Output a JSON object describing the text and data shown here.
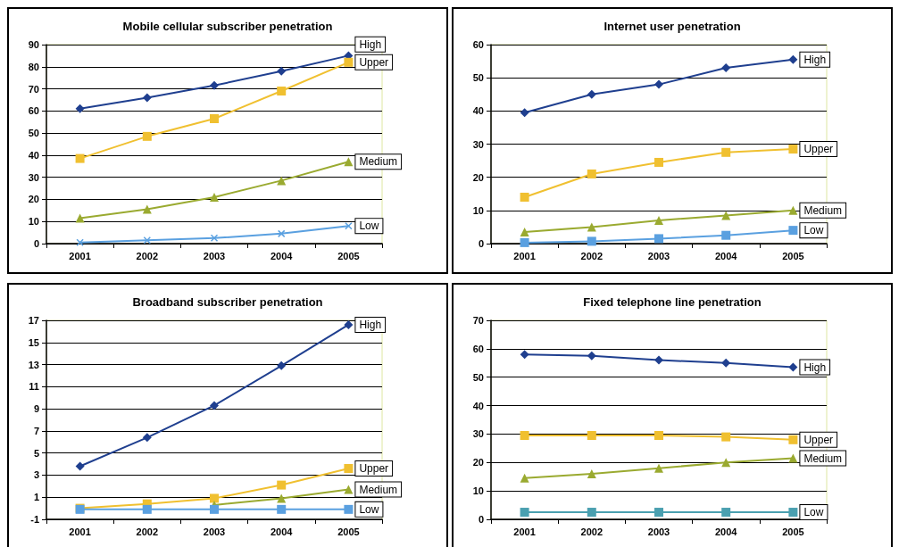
{
  "chart_data": [
    {
      "type": "line",
      "title": "Mobile cellular subscriber penetration",
      "categories": [
        "2001",
        "2002",
        "2003",
        "2004",
        "2005"
      ],
      "ylim": [
        0,
        90
      ],
      "yticks": [
        0,
        10,
        20,
        30,
        40,
        50,
        60,
        70,
        80,
        90
      ],
      "grid": "y",
      "legend": false,
      "series": [
        {
          "name": "High",
          "color": "#1f3f8f",
          "marker": "diamond",
          "values": [
            61,
            66,
            71.5,
            78,
            85
          ]
        },
        {
          "name": "Upper",
          "color": "#f0c030",
          "marker": "square",
          "values": [
            38.5,
            48.5,
            56.5,
            69,
            82
          ]
        },
        {
          "name": "Medium",
          "color": "#9aaa30",
          "marker": "triangle",
          "values": [
            11.5,
            15.5,
            21,
            28.5,
            37
          ]
        },
        {
          "name": "Low",
          "color": "#5aa0e0",
          "marker": "cross",
          "values": [
            0.5,
            1.5,
            2.5,
            4.5,
            8
          ]
        }
      ]
    },
    {
      "type": "line",
      "title": "Internet user penetration",
      "categories": [
        "2001",
        "2002",
        "2003",
        "2004",
        "2005"
      ],
      "ylim": [
        0,
        60
      ],
      "yticks": [
        0,
        10,
        20,
        30,
        40,
        50,
        60
      ],
      "grid": "y",
      "legend": false,
      "series": [
        {
          "name": "High",
          "color": "#1f3f8f",
          "marker": "diamond",
          "values": [
            39.5,
            45,
            48,
            53,
            55.5
          ]
        },
        {
          "name": "Upper",
          "color": "#f0c030",
          "marker": "square",
          "values": [
            14,
            21,
            24.5,
            27.5,
            28.5
          ]
        },
        {
          "name": "Medium",
          "color": "#9aaa30",
          "marker": "triangle",
          "values": [
            3.5,
            5,
            7,
            8.5,
            10
          ]
        },
        {
          "name": "Low",
          "color": "#5aa0e0",
          "marker": "square",
          "values": [
            0.3,
            0.7,
            1.5,
            2.5,
            4
          ]
        }
      ]
    },
    {
      "type": "line",
      "title": "Broadband subscriber penetration",
      "categories": [
        "2001",
        "2002",
        "2003",
        "2004",
        "2005"
      ],
      "ylim": [
        -1,
        17
      ],
      "yticks": [
        -1,
        1,
        3,
        5,
        7,
        9,
        11,
        13,
        15,
        17
      ],
      "grid": "y",
      "legend": false,
      "series": [
        {
          "name": "High",
          "color": "#1f3f8f",
          "marker": "diamond",
          "values": [
            3.8,
            6.4,
            9.3,
            12.9,
            16.6
          ]
        },
        {
          "name": "Upper",
          "color": "#f0c030",
          "marker": "square",
          "values": [
            0,
            0.4,
            0.9,
            2.1,
            3.6
          ]
        },
        {
          "name": "Medium",
          "color": "#9aaa30",
          "marker": "triangle",
          "values": [
            null,
            null,
            0.3,
            0.9,
            1.7
          ]
        },
        {
          "name": "Low",
          "color": "#5aa0e0",
          "marker": "square",
          "values": [
            -0.1,
            -0.1,
            -0.1,
            -0.1,
            -0.1
          ]
        }
      ]
    },
    {
      "type": "line",
      "title": "Fixed telephone line penetration",
      "categories": [
        "2001",
        "2002",
        "2003",
        "2004",
        "2005"
      ],
      "ylim": [
        0,
        70
      ],
      "yticks": [
        0,
        10,
        20,
        30,
        40,
        50,
        60,
        70
      ],
      "grid": "y",
      "legend": false,
      "series": [
        {
          "name": "High",
          "color": "#1f3f8f",
          "marker": "diamond",
          "values": [
            58,
            57.5,
            56,
            55,
            53.5
          ]
        },
        {
          "name": "Upper",
          "color": "#f0c030",
          "marker": "square",
          "values": [
            29.5,
            29.5,
            29.5,
            29,
            28
          ]
        },
        {
          "name": "Medium",
          "color": "#9aaa30",
          "marker": "triangle",
          "values": [
            14.5,
            16,
            18,
            20,
            21.5
          ]
        },
        {
          "name": "Low",
          "color": "#4aa0b0",
          "marker": "square",
          "values": [
            2.5,
            2.5,
            2.5,
            2.5,
            2.5
          ]
        }
      ]
    }
  ]
}
